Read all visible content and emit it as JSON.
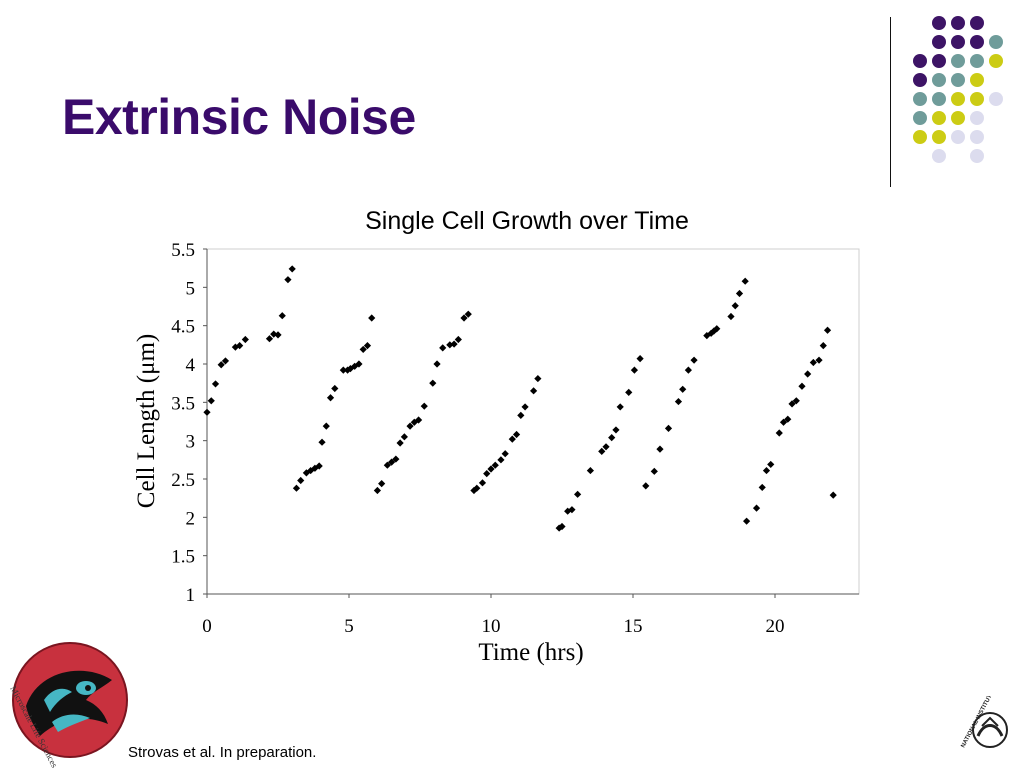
{
  "slide": {
    "title": "Extrinsic Noise",
    "citation": "Strovas et al. In preparation."
  },
  "logos": {
    "left": "Microscale Life Sciences Center",
    "right": "NATIONAL INSTITUTES OF HEALTH"
  },
  "decoration": {
    "colors": {
      "purple": "#3d1466",
      "teal": "#6f9c9a",
      "yellow": "#cccc14",
      "lavender": "#dcdcee"
    },
    "grid": [
      [
        null,
        "purple",
        "purple",
        "purple",
        null
      ],
      [
        null,
        "purple",
        "purple",
        "purple",
        "teal"
      ],
      [
        "purple",
        "purple",
        "teal",
        "teal",
        "yellow"
      ],
      [
        "purple",
        "teal",
        "teal",
        "yellow",
        null
      ],
      [
        "teal",
        "teal",
        "yellow",
        "yellow",
        "lavender"
      ],
      [
        "teal",
        "yellow",
        "yellow",
        "lavender",
        null
      ],
      [
        "yellow",
        "yellow",
        "lavender",
        "lavender",
        null
      ],
      [
        null,
        "lavender",
        null,
        "lavender",
        null
      ]
    ]
  },
  "chart_data": {
    "type": "scatter",
    "title": "Single Cell Growth over Time",
    "xlabel": "Time (hrs)",
    "ylabel": "Cell Length (μm)",
    "xlim": [
      0,
      23
    ],
    "ylim": [
      1,
      5.5
    ],
    "xticks": [
      0,
      5,
      10,
      15,
      20
    ],
    "yticks": [
      1,
      1.5,
      2,
      2.5,
      3,
      3.5,
      4,
      4.5,
      5,
      5.5
    ],
    "ytick_labels": [
      "1",
      "1.5",
      "2",
      "2.5",
      "3",
      "3.5",
      "4",
      "4.5",
      "5",
      "5.5"
    ],
    "grid": false,
    "legend": "none",
    "marker": "diamond",
    "marker_color": "#000000",
    "points": [
      [
        0.0,
        3.37
      ],
      [
        0.15,
        3.52
      ],
      [
        0.3,
        3.74
      ],
      [
        0.5,
        3.99
      ],
      [
        0.65,
        4.04
      ],
      [
        1.0,
        4.22
      ],
      [
        1.15,
        4.24
      ],
      [
        1.35,
        4.32
      ],
      [
        2.2,
        4.33
      ],
      [
        2.35,
        4.39
      ],
      [
        2.5,
        4.38
      ],
      [
        2.65,
        4.63
      ],
      [
        2.85,
        5.1
      ],
      [
        3.0,
        5.24
      ],
      [
        3.15,
        2.38
      ],
      [
        3.3,
        2.48
      ],
      [
        3.5,
        2.58
      ],
      [
        3.65,
        2.61
      ],
      [
        3.8,
        2.64
      ],
      [
        3.95,
        2.67
      ],
      [
        4.05,
        2.98
      ],
      [
        4.2,
        3.19
      ],
      [
        4.35,
        3.56
      ],
      [
        4.5,
        3.68
      ],
      [
        4.8,
        3.92
      ],
      [
        4.95,
        3.92
      ],
      [
        5.05,
        3.94
      ],
      [
        5.2,
        3.97
      ],
      [
        5.35,
        4.0
      ],
      [
        5.5,
        4.19
      ],
      [
        5.65,
        4.24
      ],
      [
        5.8,
        4.6
      ],
      [
        6.0,
        2.35
      ],
      [
        6.15,
        2.44
      ],
      [
        6.35,
        2.68
      ],
      [
        6.5,
        2.72
      ],
      [
        6.65,
        2.76
      ],
      [
        6.8,
        2.97
      ],
      [
        6.95,
        3.05
      ],
      [
        7.15,
        3.19
      ],
      [
        7.3,
        3.24
      ],
      [
        7.45,
        3.27
      ],
      [
        7.65,
        3.45
      ],
      [
        7.95,
        3.75
      ],
      [
        8.1,
        4.0
      ],
      [
        8.3,
        4.21
      ],
      [
        8.55,
        4.25
      ],
      [
        8.7,
        4.26
      ],
      [
        8.85,
        4.32
      ],
      [
        9.05,
        4.6
      ],
      [
        9.2,
        4.65
      ],
      [
        9.4,
        2.35
      ],
      [
        9.5,
        2.38
      ],
      [
        9.7,
        2.45
      ],
      [
        9.85,
        2.57
      ],
      [
        10.0,
        2.63
      ],
      [
        10.15,
        2.68
      ],
      [
        10.35,
        2.75
      ],
      [
        10.5,
        2.83
      ],
      [
        10.75,
        3.02
      ],
      [
        10.9,
        3.08
      ],
      [
        11.05,
        3.33
      ],
      [
        11.2,
        3.44
      ],
      [
        11.5,
        3.65
      ],
      [
        11.65,
        3.81
      ],
      [
        12.4,
        1.86
      ],
      [
        12.5,
        1.88
      ],
      [
        12.7,
        2.08
      ],
      [
        12.85,
        2.1
      ],
      [
        13.05,
        2.3
      ],
      [
        13.5,
        2.61
      ],
      [
        13.9,
        2.86
      ],
      [
        14.05,
        2.92
      ],
      [
        14.25,
        3.04
      ],
      [
        14.4,
        3.14
      ],
      [
        14.55,
        3.44
      ],
      [
        14.85,
        3.63
      ],
      [
        15.05,
        3.92
      ],
      [
        15.25,
        4.07
      ],
      [
        15.45,
        2.41
      ],
      [
        15.75,
        2.6
      ],
      [
        15.95,
        2.89
      ],
      [
        16.25,
        3.16
      ],
      [
        16.6,
        3.51
      ],
      [
        16.75,
        3.67
      ],
      [
        16.95,
        3.92
      ],
      [
        17.15,
        4.05
      ],
      [
        17.6,
        4.37
      ],
      [
        17.75,
        4.4
      ],
      [
        17.85,
        4.43
      ],
      [
        17.95,
        4.46
      ],
      [
        18.45,
        4.62
      ],
      [
        18.6,
        4.76
      ],
      [
        18.75,
        4.92
      ],
      [
        18.95,
        5.08
      ],
      [
        19.0,
        1.95
      ],
      [
        19.35,
        2.12
      ],
      [
        19.55,
        2.39
      ],
      [
        19.7,
        2.61
      ],
      [
        19.85,
        2.69
      ],
      [
        20.15,
        3.1
      ],
      [
        20.3,
        3.24
      ],
      [
        20.45,
        3.28
      ],
      [
        20.6,
        3.48
      ],
      [
        20.75,
        3.52
      ],
      [
        20.95,
        3.71
      ],
      [
        21.15,
        3.87
      ],
      [
        21.35,
        4.02
      ],
      [
        21.55,
        4.05
      ],
      [
        21.7,
        4.24
      ],
      [
        21.85,
        4.44
      ],
      [
        22.05,
        2.29
      ]
    ]
  }
}
